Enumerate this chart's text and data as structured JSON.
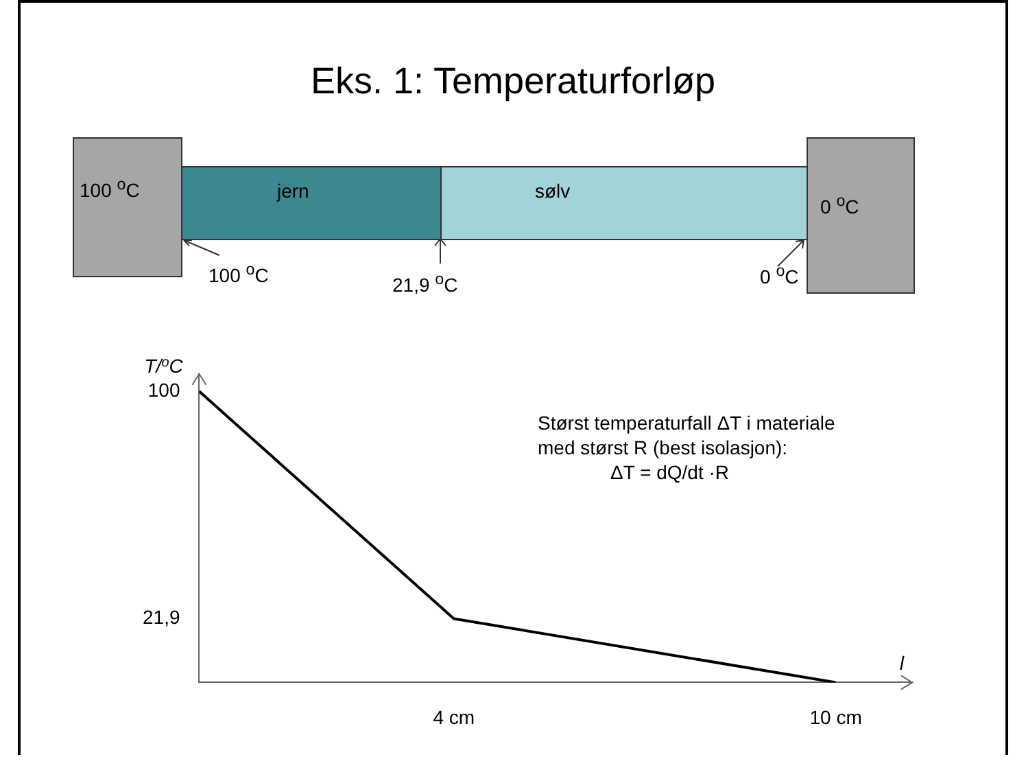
{
  "chart_data": {
    "type": "line",
    "title": "Eks. 1: Temperaturforløp",
    "xlabel": "l",
    "ylabel": "T/$^{o}$C",
    "x": [
      0,
      4,
      10
    ],
    "series": [
      {
        "color": "#000000",
        "values": [
          100,
          21.9,
          0
        ]
      }
    ],
    "xlim": [
      0,
      11.2
    ],
    "ylim": [
      0,
      106
    ],
    "xticks": [
      {
        "value": 4,
        "label": "4 cm"
      },
      {
        "value": 10,
        "label": "10 cm"
      }
    ],
    "yticks": [
      {
        "value": 21.9,
        "label": "21,9"
      },
      100
    ],
    "marker": "none",
    "legend": false,
    "annotations": [
      "100 $^{o}$C",
      "0 $^{o}$C",
      "jern",
      "sølv",
      "100 $^{o}$C",
      "21,9 $^{o}$C",
      "0 $^{o}$C",
      "Størst temperaturfall ΔT i materiale",
      "med størst R (best isolasjon):",
      "ΔT = dQ/dt ·R"
    ]
  }
}
